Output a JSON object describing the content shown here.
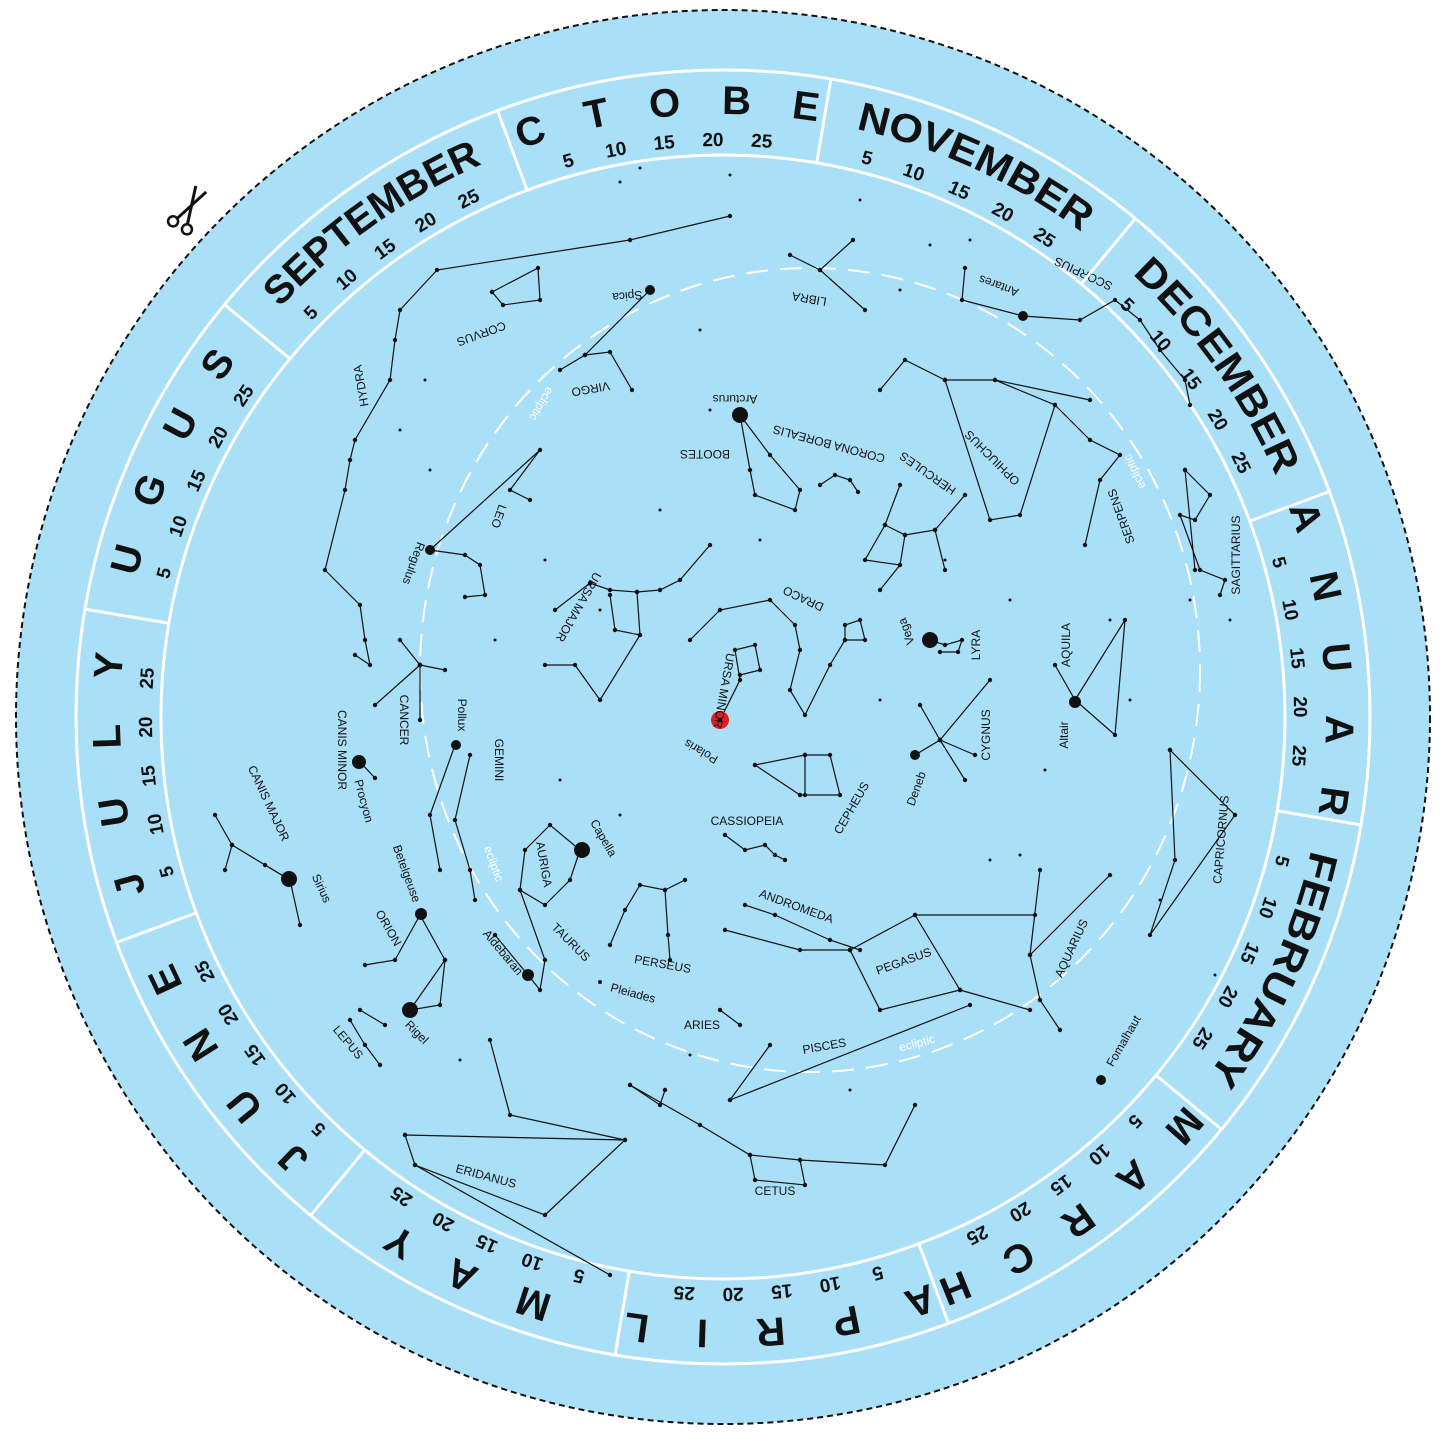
{
  "months": [
    {
      "name": "JANUARY",
      "days": [
        5,
        10,
        15,
        20,
        25
      ]
    },
    {
      "name": "FEBRUARY",
      "days": [
        5,
        10,
        15,
        20,
        25
      ]
    },
    {
      "name": "MARCH",
      "days": [
        5,
        10,
        15,
        20,
        25
      ]
    },
    {
      "name": "APRIL",
      "days": [
        5,
        10,
        15,
        20,
        25
      ]
    },
    {
      "name": "MAY",
      "days": [
        5,
        10,
        15,
        20,
        25
      ]
    },
    {
      "name": "JUNE",
      "days": [
        5,
        10,
        15,
        20,
        25
      ]
    },
    {
      "name": "JULY",
      "days": [
        5,
        10,
        15,
        20,
        25
      ]
    },
    {
      "name": "AUGUST",
      "days": [
        5,
        10,
        15,
        20,
        25
      ]
    },
    {
      "name": "SEPTEMBER",
      "days": [
        5,
        10,
        15,
        20,
        25
      ]
    },
    {
      "name": "OCTOBER",
      "days": [
        5,
        10,
        15,
        20,
        25
      ]
    },
    {
      "name": "NOVEMBER",
      "days": [
        5,
        10,
        15,
        20,
        25
      ]
    },
    {
      "name": "DECEMBER",
      "days": [
        5,
        10,
        15,
        20,
        25
      ]
    }
  ],
  "constellations": [
    "HYDRA",
    "CORVUS",
    "VIRGO",
    "LIBRA",
    "BOOTES",
    "CORONA BOREALIS",
    "HERCULES",
    "OPHIUCHUS",
    "SCORPIUS",
    "SERPENS",
    "SAGITTARIUS",
    "LEO",
    "URSA MAJOR",
    "DRACO",
    "LYRA",
    "AQUILA",
    "URSA MINOR",
    "CANCER",
    "CANIS MINOR",
    "GEMINI",
    "CANIS MAJOR",
    "ORION",
    "LEPUS",
    "TAURUS",
    "AURIGA",
    "CASSIOPEIA",
    "CEPHEUS",
    "CYGNUS",
    "CAPRICORNUS",
    "AQUARIUS",
    "ANDROMEDA",
    "PEGASUS",
    "PERSEUS",
    "ARIES",
    "PISCES",
    "ERIDANUS",
    "CETUS"
  ],
  "stars": [
    "Spica",
    "Arcturus",
    "Antares",
    "Regulus",
    "Vega",
    "Polaris",
    "Pollux",
    "Procyon",
    "Sirius",
    "Betelgeuse",
    "Rigel",
    "Aldebaran",
    "Capella",
    "Deneb",
    "Altair",
    "Fomalhaut",
    "Pleiades"
  ],
  "ecliptic_labels": [
    "ecliptic",
    "ecliptic",
    "ecliptic",
    "ecliptic"
  ]
}
